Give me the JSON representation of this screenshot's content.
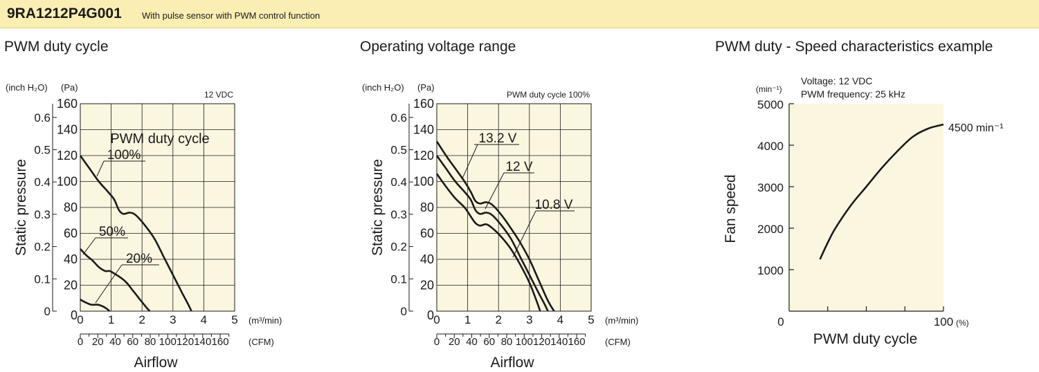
{
  "header": {
    "model": "9RA1212P4G001",
    "description": "With pulse sensor with PWM control function"
  },
  "titles": {
    "pwm": "PWM duty cycle",
    "voltage": "Operating voltage range",
    "speed": "PWM duty - Speed characteristics example"
  },
  "colors": {
    "header_bg": "#fbeeb3",
    "plot_bg": "#fbf6e0",
    "line": "#1a1a1a"
  },
  "chart_data": [
    {
      "type": "line",
      "title": "PWM duty cycle",
      "condition": "12 VDC",
      "legend_title": "PWM duty cycle",
      "ylabel": "Static pressure",
      "xlabel": "Airflow",
      "y_unit_left": "(inch H₂O)",
      "y_unit_right": "(Pa)",
      "x_unit_top": "(m³/min)",
      "x_unit_bottom": "(CFM)",
      "xlim": [
        0,
        5
      ],
      "ylim": [
        0,
        160
      ],
      "x_ticks": [
        "0",
        "1",
        "2",
        "3",
        "4",
        "5"
      ],
      "y_ticks_pa": [
        "0",
        "20",
        "40",
        "60",
        "80",
        "100",
        "120",
        "140",
        "160"
      ],
      "y_ticks_inch": [
        "0",
        "0.1",
        "0.2",
        "0.3",
        "0.4",
        "0.5",
        "0.6"
      ],
      "cfm_ticks": [
        "0",
        "20",
        "40",
        "60",
        "80",
        "100",
        "120",
        "140",
        "160"
      ],
      "grid": true,
      "series": [
        {
          "name": "100%",
          "x": [
            0,
            0.3,
            0.6,
            0.9,
            1.1,
            1.25,
            1.4,
            1.6,
            1.8,
            2.1,
            2.4,
            2.7,
            3.0,
            3.3,
            3.5,
            3.6
          ],
          "y": [
            120,
            110,
            100,
            92,
            86,
            78,
            75,
            76,
            74,
            66,
            56,
            42,
            28,
            14,
            5,
            0
          ]
        },
        {
          "name": "50%",
          "x": [
            0,
            0.2,
            0.4,
            0.6,
            0.8,
            0.95,
            1.1,
            1.3,
            1.5,
            1.7,
            1.9,
            2.1,
            2.25
          ],
          "y": [
            48,
            43,
            39,
            34,
            31,
            31,
            29,
            26,
            22,
            16,
            10,
            4,
            0
          ]
        },
        {
          "name": "20%",
          "x": [
            0,
            0.15,
            0.35,
            0.55,
            0.7,
            0.85,
            0.95
          ],
          "y": [
            9,
            7,
            5,
            5,
            4,
            2,
            0
          ]
        }
      ]
    },
    {
      "type": "line",
      "title": "Operating voltage range",
      "condition": "PWM duty cycle 100%",
      "ylabel": "Static pressure",
      "xlabel": "Airflow",
      "y_unit_left": "(inch H₂O)",
      "y_unit_right": "(Pa)",
      "x_unit_top": "(m³/min)",
      "x_unit_bottom": "(CFM)",
      "xlim": [
        0,
        5
      ],
      "ylim": [
        0,
        160
      ],
      "x_ticks": [
        "0",
        "1",
        "2",
        "3",
        "4",
        "5"
      ],
      "y_ticks_pa": [
        "0",
        "20",
        "40",
        "60",
        "80",
        "100",
        "120",
        "140",
        "160"
      ],
      "y_ticks_inch": [
        "0",
        "0.1",
        "0.2",
        "0.3",
        "0.4",
        "0.5",
        "0.6"
      ],
      "cfm_ticks": [
        "0",
        "20",
        "40",
        "60",
        "80",
        "100",
        "120",
        "140",
        "160"
      ],
      "grid": true,
      "series": [
        {
          "name": "13.2 V",
          "x": [
            0,
            0.3,
            0.6,
            0.9,
            1.1,
            1.25,
            1.4,
            1.6,
            1.8,
            2.1,
            2.4,
            2.7,
            3.0,
            3.3,
            3.6,
            3.8
          ],
          "y": [
            131,
            120,
            110,
            100,
            92,
            85,
            83,
            84,
            82,
            74,
            64,
            53,
            40,
            24,
            8,
            0
          ]
        },
        {
          "name": "12 V",
          "x": [
            0,
            0.3,
            0.6,
            0.9,
            1.1,
            1.25,
            1.4,
            1.6,
            1.8,
            2.1,
            2.4,
            2.7,
            3.0,
            3.3,
            3.5,
            3.6
          ],
          "y": [
            120,
            110,
            100,
            92,
            86,
            78,
            75,
            76,
            74,
            66,
            56,
            42,
            28,
            14,
            5,
            0
          ]
        },
        {
          "name": "10.8 V",
          "x": [
            0,
            0.3,
            0.6,
            0.9,
            1.1,
            1.25,
            1.4,
            1.6,
            1.8,
            2.1,
            2.4,
            2.7,
            3.0,
            3.2,
            3.35
          ],
          "y": [
            106,
            96,
            87,
            80,
            73,
            68,
            66,
            67,
            64,
            57,
            48,
            36,
            22,
            10,
            0
          ]
        }
      ]
    },
    {
      "type": "line",
      "title": "PWM duty - Speed characteristics example",
      "conditions": [
        "Voltage: 12 VDC",
        "PWM frequency: 25 kHz"
      ],
      "ylabel": "Fan speed",
      "xlabel": "PWM duty cycle",
      "y_unit": "(min⁻¹)",
      "x_unit": "(%)",
      "xlim": [
        0,
        100
      ],
      "ylim": [
        0,
        5000
      ],
      "y_ticks": [
        "1000",
        "2000",
        "3000",
        "4000",
        "5000"
      ],
      "x_ticks": [
        "0",
        "100"
      ],
      "annotation": "4500 min⁻¹",
      "grid": true,
      "series": [
        {
          "x": [
            20,
            25,
            30,
            40,
            50,
            60,
            70,
            80,
            90,
            100
          ],
          "y": [
            1250,
            1650,
            2000,
            2550,
            3000,
            3450,
            3850,
            4200,
            4400,
            4500
          ]
        }
      ]
    }
  ]
}
